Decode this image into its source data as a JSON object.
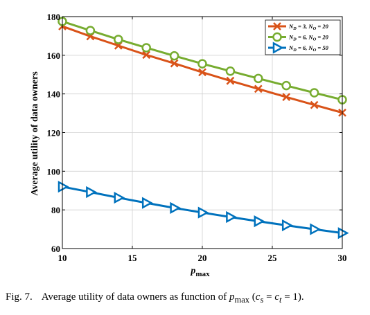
{
  "chart_data": {
    "type": "line",
    "xlabel": "p_max",
    "ylabel": "Average utility of data owners",
    "xlim": [
      10,
      30
    ],
    "ylim": [
      60,
      180
    ],
    "xticks": [
      10,
      15,
      20,
      25,
      30
    ],
    "yticks": [
      60,
      80,
      100,
      120,
      140,
      160,
      180
    ],
    "grid": true,
    "legend_position": "top-right",
    "x": [
      10,
      12,
      14,
      16,
      18,
      20,
      22,
      24,
      26,
      28,
      30
    ],
    "series": [
      {
        "name": "N_D = 3, N_O = 20",
        "name_main": "N",
        "name_sub1": "D",
        "name_mid": " = 3, N",
        "name_sub2": "O",
        "name_end": " = 20",
        "marker": "x",
        "color": "#d95319",
        "values": [
          175,
          169.8,
          165,
          160.2,
          155.8,
          151.2,
          146.8,
          142.6,
          138.4,
          134.3,
          130.3
        ]
      },
      {
        "name": "N_D = 6, N_O = 20",
        "name_main": "N",
        "name_sub1": "D",
        "name_mid": " = 6, N",
        "name_sub2": "O",
        "name_end": " = 20",
        "marker": "circle",
        "color": "#77ac30",
        "values": [
          177.5,
          172.8,
          168.2,
          163.9,
          159.7,
          155.6,
          151.8,
          148,
          144.3,
          140.6,
          137
        ]
      },
      {
        "name": "N_D = 6, N_O = 50",
        "name_main": "N",
        "name_sub1": "D",
        "name_mid": " = 6, N",
        "name_sub2": "O",
        "name_end": " = 50",
        "marker": "triangle-right",
        "color": "#0072bd",
        "values": [
          92,
          89.2,
          86.3,
          83.6,
          81,
          78.6,
          76.3,
          74.1,
          72,
          70,
          68
        ]
      }
    ]
  },
  "caption": {
    "label": "Fig. 7.",
    "text": "Average utility of data owners as function of",
    "var": "p",
    "var_sub": "max",
    "cond_open": "(",
    "c1": "c",
    "c1_sub": "s",
    "eq": " = ",
    "c2": "c",
    "c2_sub": "t",
    "cond_close": " = 1)."
  }
}
